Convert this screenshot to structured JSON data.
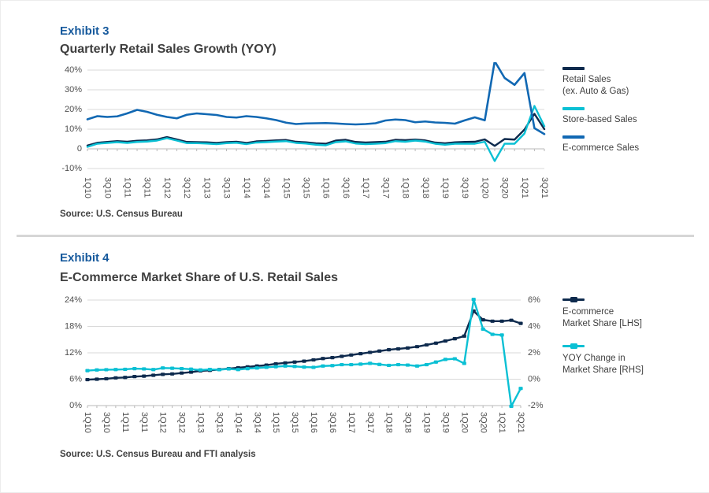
{
  "exhibit3": {
    "label": "Exhibit 3",
    "title": "Quarterly Retail Sales Growth (YOY)",
    "source": "Source: U.S. Census Bureau",
    "legend": [
      {
        "line1": "Retail Sales",
        "line2": "(ex. Auto & Gas)",
        "color": "#0e2a4d"
      },
      {
        "line1": "Store-based Sales",
        "line2": "",
        "color": "#0bc0d4"
      },
      {
        "line1": "E-commerce Sales",
        "line2": "",
        "color": "#1168b3"
      }
    ]
  },
  "exhibit4": {
    "label": "Exhibit 4",
    "title": "E-Commerce Market Share of U.S. Retail Sales",
    "source": "Source: U.S. Census Bureau and FTI analysis",
    "legend": [
      {
        "line1": "E-commerce",
        "line2": "Market Share [LHS]",
        "color": "#0e2a4d"
      },
      {
        "line1": "YOY Change in",
        "line2": "Market Share [RHS]",
        "color": "#0bc0d4"
      }
    ]
  },
  "chart_data": [
    {
      "type": "line",
      "title": "Quarterly Retail Sales Growth (YOY)",
      "xlabel": "",
      "ylabel": "YOY growth %",
      "grid": true,
      "legend_position": "right",
      "x_label_step": 2,
      "categories": [
        "1Q10",
        "2Q10",
        "3Q10",
        "4Q10",
        "1Q11",
        "2Q11",
        "3Q11",
        "4Q11",
        "1Q12",
        "2Q12",
        "3Q12",
        "4Q12",
        "1Q13",
        "2Q13",
        "3Q13",
        "4Q13",
        "1Q14",
        "2Q14",
        "3Q14",
        "4Q14",
        "1Q15",
        "2Q15",
        "3Q15",
        "4Q15",
        "1Q16",
        "2Q16",
        "3Q16",
        "4Q16",
        "1Q17",
        "2Q17",
        "3Q17",
        "4Q17",
        "1Q18",
        "2Q18",
        "3Q18",
        "4Q18",
        "1Q19",
        "2Q19",
        "3Q19",
        "4Q19",
        "1Q20",
        "2Q20",
        "3Q20",
        "4Q20",
        "1Q21",
        "2Q21",
        "3Q21"
      ],
      "left_ylim": [
        -10,
        40
      ],
      "left_ticks": [
        {
          "value": 40,
          "label": "40%"
        },
        {
          "value": 30,
          "label": "30%"
        },
        {
          "value": 20,
          "label": "20%"
        },
        {
          "value": 10,
          "label": "10%"
        },
        {
          "value": 0,
          "label": "0",
          "axis": true
        },
        {
          "value": -10,
          "label": "-10%"
        }
      ],
      "series": [
        {
          "name": "Retail Sales (ex. Auto & Gas)",
          "color": "#0e2a4d",
          "width": 2.4,
          "markers": false,
          "values": [
            1.7,
            3.1,
            3.5,
            3.9,
            3.6,
            4.1,
            4.3,
            4.8,
            6.0,
            4.8,
            3.5,
            3.4,
            3.3,
            3.0,
            3.4,
            3.6,
            3.0,
            3.8,
            4.0,
            4.3,
            4.5,
            3.6,
            3.3,
            2.8,
            2.6,
            4.2,
            4.6,
            3.5,
            3.2,
            3.4,
            3.6,
            4.6,
            4.4,
            4.7,
            4.3,
            3.2,
            2.8,
            3.3,
            3.5,
            3.6,
            4.8,
            1.5,
            5.0,
            4.7,
            9.8,
            17.8,
            10.0
          ]
        },
        {
          "name": "Store-based Sales",
          "color": "#0bc0d4",
          "width": 2.4,
          "markers": false,
          "values": [
            1.0,
            2.6,
            3.0,
            3.4,
            3.0,
            3.5,
            3.7,
            4.2,
            5.4,
            4.2,
            2.9,
            2.9,
            2.7,
            2.4,
            2.9,
            3.1,
            2.4,
            3.2,
            3.4,
            3.7,
            3.9,
            3.0,
            2.7,
            2.1,
            1.8,
            3.4,
            3.8,
            2.7,
            2.4,
            2.6,
            2.9,
            3.9,
            3.6,
            4.2,
            3.7,
            2.6,
            2.1,
            2.6,
            2.6,
            2.6,
            3.6,
            -6.2,
            2.6,
            2.6,
            7.8,
            21.8,
            11.5
          ]
        },
        {
          "name": "E-commerce Sales",
          "color": "#1168b3",
          "width": 2.6,
          "markers": false,
          "values": [
            15.0,
            16.6,
            16.2,
            16.5,
            18.0,
            19.8,
            18.8,
            17.3,
            16.2,
            15.5,
            17.3,
            18.0,
            17.6,
            17.2,
            16.2,
            15.9,
            16.6,
            16.2,
            15.5,
            14.6,
            13.3,
            12.6,
            12.9,
            13.0,
            13.1,
            12.9,
            12.6,
            12.4,
            12.6,
            13.0,
            14.4,
            14.9,
            14.6,
            13.5,
            13.9,
            13.4,
            13.2,
            12.8,
            14.5,
            16.0,
            14.5,
            44.5,
            36.0,
            32.5,
            38.5,
            10.5,
            7.5
          ]
        }
      ]
    },
    {
      "type": "line",
      "title": "E-Commerce Market Share of U.S. Retail Sales",
      "xlabel": "",
      "ylabel_left": "E-commerce market share %",
      "ylabel_right": "YOY change in market share (ppt)",
      "grid": true,
      "legend_position": "right",
      "x_label_step": 2,
      "categories": [
        "1Q10",
        "2Q10",
        "3Q10",
        "4Q10",
        "1Q11",
        "2Q11",
        "3Q11",
        "4Q11",
        "1Q12",
        "2Q12",
        "3Q12",
        "4Q12",
        "1Q13",
        "2Q13",
        "3Q13",
        "4Q13",
        "1Q14",
        "2Q14",
        "3Q14",
        "4Q14",
        "1Q15",
        "2Q15",
        "3Q15",
        "4Q15",
        "1Q16",
        "2Q16",
        "3Q16",
        "4Q16",
        "1Q17",
        "2Q17",
        "3Q17",
        "4Q17",
        "1Q18",
        "2Q18",
        "3Q18",
        "4Q18",
        "1Q19",
        "2Q19",
        "3Q19",
        "4Q19",
        "1Q20",
        "2Q20",
        "3Q20",
        "4Q20",
        "1Q21",
        "2Q21",
        "3Q21"
      ],
      "left_ylim": [
        0,
        24
      ],
      "right_ylim": [
        -2,
        6
      ],
      "left_ticks": [
        {
          "value": 24,
          "label": "24%"
        },
        {
          "value": 18,
          "label": "18%"
        },
        {
          "value": 12,
          "label": "12%"
        },
        {
          "value": 6,
          "label": "6%"
        },
        {
          "value": 0,
          "label": "0%",
          "axis": true
        }
      ],
      "right_ticks": [
        {
          "value": 6,
          "label": "6%"
        },
        {
          "value": 4,
          "label": "4%"
        },
        {
          "value": 2,
          "label": "2%"
        },
        {
          "value": 0,
          "label": "0%"
        },
        {
          "value": -2,
          "label": "-2%"
        }
      ],
      "series": [
        {
          "name": "E-commerce Market Share [LHS]",
          "axis": "left",
          "color": "#0e2a4d",
          "width": 2.4,
          "markers": true,
          "values": [
            5.9,
            6.0,
            6.1,
            6.3,
            6.4,
            6.6,
            6.7,
            6.9,
            7.1,
            7.2,
            7.4,
            7.6,
            7.9,
            8.0,
            8.2,
            8.4,
            8.6,
            8.8,
            9.0,
            9.2,
            9.5,
            9.7,
            9.9,
            10.1,
            10.4,
            10.7,
            10.9,
            11.2,
            11.5,
            11.8,
            12.1,
            12.4,
            12.7,
            12.9,
            13.1,
            13.4,
            13.8,
            14.2,
            14.7,
            15.2,
            15.8,
            21.5,
            19.5,
            19.2,
            19.2,
            19.4,
            18.7
          ]
        },
        {
          "name": "YOY Change in Market Share [RHS]",
          "axis": "right",
          "color": "#0bc0d4",
          "width": 2.4,
          "markers": true,
          "values": [
            0.65,
            0.7,
            0.72,
            0.73,
            0.75,
            0.8,
            0.78,
            0.73,
            0.85,
            0.83,
            0.8,
            0.76,
            0.7,
            0.74,
            0.72,
            0.78,
            0.73,
            0.8,
            0.85,
            0.9,
            0.95,
            1.0,
            0.97,
            0.92,
            0.9,
            1.0,
            1.03,
            1.1,
            1.1,
            1.14,
            1.2,
            1.12,
            1.05,
            1.1,
            1.07,
            1.0,
            1.1,
            1.3,
            1.5,
            1.55,
            1.2,
            6.05,
            3.8,
            3.4,
            3.35,
            -2.05,
            -0.7
          ]
        }
      ]
    }
  ]
}
